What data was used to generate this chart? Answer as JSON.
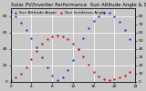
{
  "title": "Solar PV/Inverter Performance  Sun Altitude Angle & Sun Incidence Angle on PV Panels",
  "blue_label": "Sun Altitude Angle",
  "red_label": "Sun Incidence Angle",
  "blue_color": "#0000dd",
  "red_color": "#cc0000",
  "bg_color": "#c8c8c8",
  "plot_bg_color": "#c8c8c8",
  "grid_color": "#ffffff",
  "xlim": [
    0,
    24
  ],
  "ylim_left": [
    0,
    90
  ],
  "ylim_right": [
    0,
    90
  ],
  "xlabel_ticks": [
    0,
    4,
    8,
    12,
    16,
    20,
    24
  ],
  "xlabel_labels": [
    "0",
    "4",
    "8",
    "12",
    "16",
    "20",
    "24"
  ],
  "ylabel_left_ticks": [
    0,
    20,
    40,
    60,
    80
  ],
  "ylabel_right_ticks": [
    0,
    10,
    20,
    30,
    40,
    50,
    60,
    70,
    80
  ],
  "blue_x": [
    0,
    1,
    2,
    3,
    4,
    5,
    6,
    7,
    8,
    9,
    10,
    11,
    12,
    13,
    14,
    15,
    16,
    17,
    18,
    19,
    20,
    21,
    22,
    23
  ],
  "blue_y": [
    85,
    80,
    72,
    63,
    53,
    42,
    30,
    18,
    8,
    2,
    5,
    14,
    26,
    40,
    53,
    65,
    74,
    80,
    84,
    84,
    80,
    73,
    63,
    52
  ],
  "red_x": [
    0,
    1,
    2,
    3,
    4,
    5,
    6,
    7,
    8,
    9,
    10,
    11,
    12,
    13,
    14,
    15,
    16,
    17,
    18,
    19,
    20,
    21,
    22,
    23
  ],
  "red_y": [
    2,
    5,
    10,
    18,
    28,
    38,
    46,
    52,
    55,
    56,
    55,
    52,
    47,
    40,
    31,
    21,
    12,
    6,
    3,
    2,
    3,
    5,
    8,
    12
  ],
  "title_fontsize": 4.0,
  "legend_fontsize": 3.2,
  "tick_fontsize": 3.2,
  "figsize": [
    1.6,
    1.0
  ],
  "dpi": 100
}
